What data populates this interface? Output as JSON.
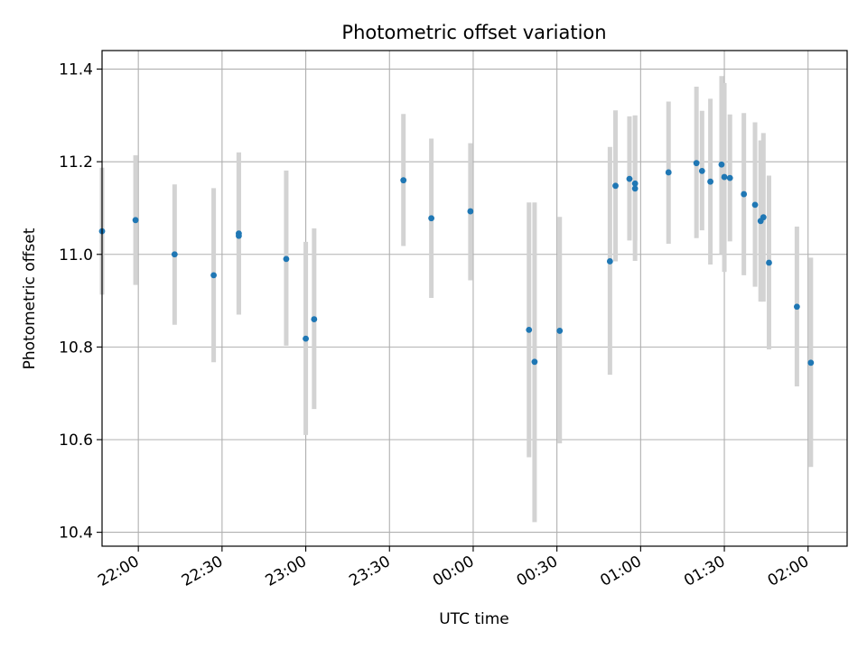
{
  "chart_data": {
    "type": "scatter",
    "title": "Photometric offset variation",
    "xlabel": "UTC time",
    "ylabel": "Photometric offset",
    "xlim": [
      "21:47",
      "02:14"
    ],
    "ylim": [
      10.37,
      11.44
    ],
    "grid": true,
    "x_ticks": [
      "22:00",
      "22:30",
      "23:00",
      "23:30",
      "00:00",
      "00:30",
      "01:00",
      "01:30",
      "02:00"
    ],
    "y_ticks": [
      "10.4",
      "10.6",
      "10.8",
      "11.0",
      "11.2",
      "11.4"
    ],
    "colors": {
      "point": "#1f77b4",
      "errorbar": "#d3d3d3",
      "grid": "#b0b0b0"
    },
    "series": [
      {
        "points": [
          {
            "x": "21:47",
            "y": 11.05,
            "ylo": 10.913,
            "yhi": 11.187
          },
          {
            "x": "21:59",
            "y": 11.074,
            "ylo": 10.934,
            "yhi": 11.214
          },
          {
            "x": "22:13",
            "y": 11.0,
            "ylo": 10.848,
            "yhi": 11.151
          },
          {
            "x": "22:27",
            "y": 10.955,
            "ylo": 10.767,
            "yhi": 11.143
          },
          {
            "x": "22:36",
            "y": 11.045,
            "ylo": 10.87,
            "yhi": 11.22
          },
          {
            "x": "22:36",
            "y": 11.04,
            "ylo": 10.87,
            "yhi": 11.22
          },
          {
            "x": "22:53",
            "y": 10.99,
            "ylo": 10.803,
            "yhi": 11.181
          },
          {
            "x": "23:00",
            "y": 10.818,
            "ylo": 10.61,
            "yhi": 11.027
          },
          {
            "x": "23:03",
            "y": 10.86,
            "ylo": 10.666,
            "yhi": 11.056
          },
          {
            "x": "23:35",
            "y": 11.16,
            "ylo": 11.018,
            "yhi": 11.303
          },
          {
            "x": "23:45",
            "y": 11.078,
            "ylo": 10.906,
            "yhi": 11.25
          },
          {
            "x": "23:59",
            "y": 11.093,
            "ylo": 10.944,
            "yhi": 11.24
          },
          {
            "x": "00:20",
            "y": 10.837,
            "ylo": 10.562,
            "yhi": 11.112
          },
          {
            "x": "00:22",
            "y": 10.768,
            "ylo": 10.422,
            "yhi": 11.112
          },
          {
            "x": "00:31",
            "y": 10.835,
            "ylo": 10.592,
            "yhi": 11.081
          },
          {
            "x": "00:49",
            "y": 10.985,
            "ylo": 10.74,
            "yhi": 11.232
          },
          {
            "x": "00:51",
            "y": 11.148,
            "ylo": 10.985,
            "yhi": 11.311
          },
          {
            "x": "00:56",
            "y": 11.163,
            "ylo": 11.03,
            "yhi": 11.298
          },
          {
            "x": "00:58",
            "y": 11.142,
            "ylo": 10.986,
            "yhi": 11.3
          },
          {
            "x": "00:58",
            "y": 11.153,
            "ylo": 11.03,
            "yhi": 11.3
          },
          {
            "x": "01:10",
            "y": 11.177,
            "ylo": 11.023,
            "yhi": 11.33
          },
          {
            "x": "01:20",
            "y": 11.197,
            "ylo": 11.035,
            "yhi": 11.362
          },
          {
            "x": "01:22",
            "y": 11.18,
            "ylo": 11.052,
            "yhi": 11.31
          },
          {
            "x": "01:25",
            "y": 11.157,
            "ylo": 10.978,
            "yhi": 11.336
          },
          {
            "x": "01:29",
            "y": 11.194,
            "ylo": 11.0,
            "yhi": 11.385
          },
          {
            "x": "01:30",
            "y": 11.167,
            "ylo": 10.962,
            "yhi": 11.37
          },
          {
            "x": "01:32",
            "y": 11.165,
            "ylo": 11.028,
            "yhi": 11.302
          },
          {
            "x": "01:37",
            "y": 11.13,
            "ylo": 10.955,
            "yhi": 11.305
          },
          {
            "x": "01:41",
            "y": 11.107,
            "ylo": 10.93,
            "yhi": 11.285
          },
          {
            "x": "01:43",
            "y": 11.072,
            "ylo": 10.898,
            "yhi": 11.246
          },
          {
            "x": "01:44",
            "y": 11.08,
            "ylo": 10.898,
            "yhi": 11.262
          },
          {
            "x": "01:46",
            "y": 10.982,
            "ylo": 10.795,
            "yhi": 11.17
          },
          {
            "x": "01:56",
            "y": 10.887,
            "ylo": 10.715,
            "yhi": 11.06
          },
          {
            "x": "02:01",
            "y": 10.766,
            "ylo": 10.541,
            "yhi": 10.993
          }
        ]
      }
    ]
  }
}
